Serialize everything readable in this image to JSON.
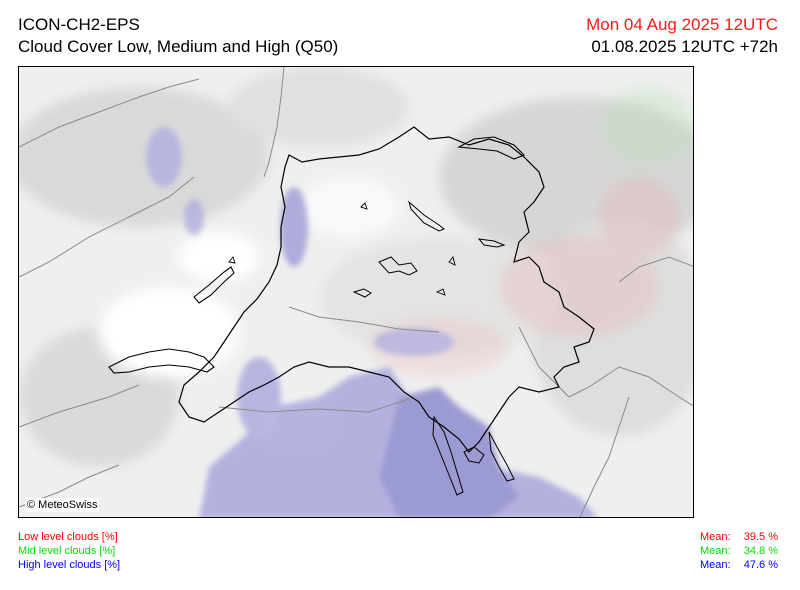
{
  "header": {
    "model": "ICON-CH2-EPS",
    "product": "Cloud Cover Low, Medium and High (Q50)",
    "valid_time": "Mon 04 Aug 2025 12UTC",
    "run_lead": "01.08.2025 12UTC +72h"
  },
  "map": {
    "copyright": "© MeteoSwiss",
    "colors": {
      "low": "#ff0000",
      "mid": "#00e000",
      "high": "#0000ff",
      "high_shading": "#9c9ad6",
      "border": "#000000",
      "terrain_shade": "#dcdcdc"
    }
  },
  "legend": {
    "low": "Low level clouds [%]",
    "mid": "Mid level clouds [%]",
    "high": "High level clouds [%]"
  },
  "means": {
    "label": "Mean:",
    "low": "39.5 %",
    "mid": "34.8 %",
    "high": "47.6 %"
  }
}
